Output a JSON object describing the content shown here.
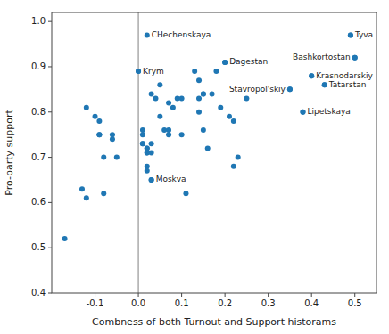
{
  "chart_data": {
    "type": "scatter",
    "x_label": "Combness of both Turnout and Support historams",
    "y_label": "Pro-party support",
    "xlim": [
      -0.2,
      0.55
    ],
    "ylim": [
      0.4,
      1.02
    ],
    "xticks": [
      -0.1,
      {
        "value": 0.0,
        "label": "0.0"
      },
      0.1,
      0.2,
      0.3,
      0.4,
      0.5
    ],
    "yticks": [
      0.4,
      0.5,
      0.6,
      0.7,
      0.8,
      0.9,
      {
        "value": 1.0,
        "label": "1.0"
      }
    ],
    "grid": false,
    "color": "#1f77b4",
    "x": [
      -0.17,
      -0.13,
      -0.12,
      -0.12,
      -0.1,
      -0.09,
      -0.09,
      -0.09,
      -0.08,
      -0.08,
      -0.06,
      -0.06,
      -0.05,
      0.0,
      0.01,
      0.01,
      0.01,
      0.01,
      0.02,
      0.02,
      0.02,
      0.02,
      0.02,
      0.02,
      0.03,
      0.03,
      0.03,
      0.03,
      0.04,
      0.05,
      0.05,
      0.06,
      0.07,
      0.07,
      0.07,
      0.08,
      0.09,
      0.1,
      0.1,
      0.11,
      0.13,
      0.14,
      0.14,
      0.14,
      0.15,
      0.15,
      0.15,
      0.16,
      0.17,
      0.18,
      0.19,
      0.2,
      0.21,
      0.22,
      0.22,
      0.23,
      0.25,
      0.35,
      0.38,
      0.4,
      0.43,
      0.49,
      0.5
    ],
    "values": [
      0.52,
      0.63,
      0.61,
      0.81,
      0.79,
      0.78,
      0.75,
      0.75,
      0.7,
      0.62,
      0.75,
      0.74,
      0.7,
      0.89,
      0.76,
      0.75,
      0.73,
      0.73,
      0.72,
      0.72,
      0.71,
      0.71,
      0.68,
      0.67,
      0.84,
      0.73,
      0.71,
      0.65,
      0.83,
      0.86,
      0.79,
      0.76,
      0.82,
      0.76,
      0.75,
      0.81,
      0.83,
      0.83,
      0.75,
      0.62,
      0.89,
      0.87,
      0.83,
      0.8,
      0.84,
      0.84,
      0.76,
      0.72,
      0.84,
      0.89,
      0.81,
      0.91,
      0.79,
      0.78,
      0.68,
      0.7,
      0.83,
      0.85,
      0.8,
      0.88,
      0.86,
      0.97,
      0.92
    ],
    "annotations": [
      {
        "x": 0.02,
        "y": 0.97,
        "text": "CHechenskaya"
      },
      {
        "x": 0.49,
        "y": 0.97,
        "text": "Tyva"
      },
      {
        "x": 0.5,
        "y": 0.92,
        "text": "Bashkortostan"
      },
      {
        "x": 0.0,
        "y": 0.89,
        "text": "Krym"
      },
      {
        "x": 0.4,
        "y": 0.88,
        "text": "Krasnodarskiy"
      },
      {
        "x": 0.2,
        "y": 0.91,
        "text": "Dagestan"
      },
      {
        "x": 0.43,
        "y": 0.86,
        "text": "Tatarstan"
      },
      {
        "x": 0.35,
        "y": 0.85,
        "text": "Stavropol'skiy"
      },
      {
        "x": 0.38,
        "y": 0.8,
        "text": "Lipetskaya"
      },
      {
        "x": 0.03,
        "y": 0.65,
        "text": "Moskva"
      }
    ],
    "reference_lines": [
      {
        "x": 0.0,
        "color": "gray"
      }
    ]
  }
}
